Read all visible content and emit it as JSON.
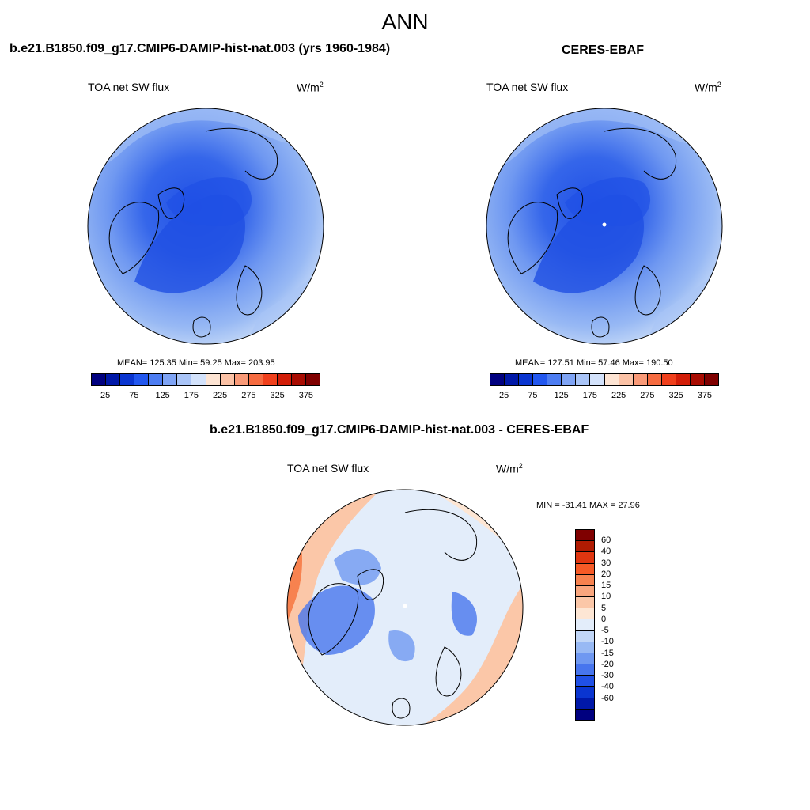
{
  "main_title": "ANN",
  "panels": [
    {
      "title": "b.e21.B1850.f09_g17.CMIP6-DAMIP-hist-nat.003 (yrs 1960-1984)",
      "variable": "TOA net SW flux",
      "units_base": "W/m",
      "units_sup": "2",
      "stats": "MEAN= 125.35  Min=  59.25  Max= 203.95"
    },
    {
      "title": "CERES-EBAF",
      "variable": "TOA net SW flux",
      "units_base": "W/m",
      "units_sup": "2",
      "stats": "MEAN= 127.51  Min=  57.46  Max= 190.50"
    },
    {
      "title": "b.e21.B1850.f09_g17.CMIP6-DAMIP-hist-nat.003 - CERES-EBAF",
      "variable": "TOA net SW flux",
      "units_base": "W/m",
      "units_sup": "2",
      "stats": "MIN = -31.41 MAX =  27.96"
    }
  ],
  "colorbar_field": {
    "colors": [
      "#00007f",
      "#0018a8",
      "#0a35d0",
      "#2257ef",
      "#4d7df2",
      "#7fa4f5",
      "#a9c4f7",
      "#d3e2fb",
      "#fde4d3",
      "#fbc2a6",
      "#f99a78",
      "#f66c41",
      "#f0401c",
      "#d21d08",
      "#a80c02",
      "#7f0000"
    ],
    "ticks": [
      "25",
      "75",
      "125",
      "175",
      "225",
      "275",
      "325",
      "375"
    ]
  },
  "colorbar_diff": {
    "colors": [
      "#7f0000",
      "#b01b02",
      "#e03610",
      "#f65a26",
      "#f7824f",
      "#f9a67e",
      "#fbc7a8",
      "#fde6d4",
      "#e3edfa",
      "#c1d6f7",
      "#98b9f4",
      "#6f98f1",
      "#4775ee",
      "#2050e6",
      "#0a35d0",
      "#0018a8",
      "#00007f"
    ],
    "ticks": [
      "60",
      "40",
      "30",
      "20",
      "15",
      "10",
      "5",
      "0",
      "-5",
      "-10",
      "-15",
      "-20",
      "-30",
      "-40",
      "-60"
    ]
  }
}
